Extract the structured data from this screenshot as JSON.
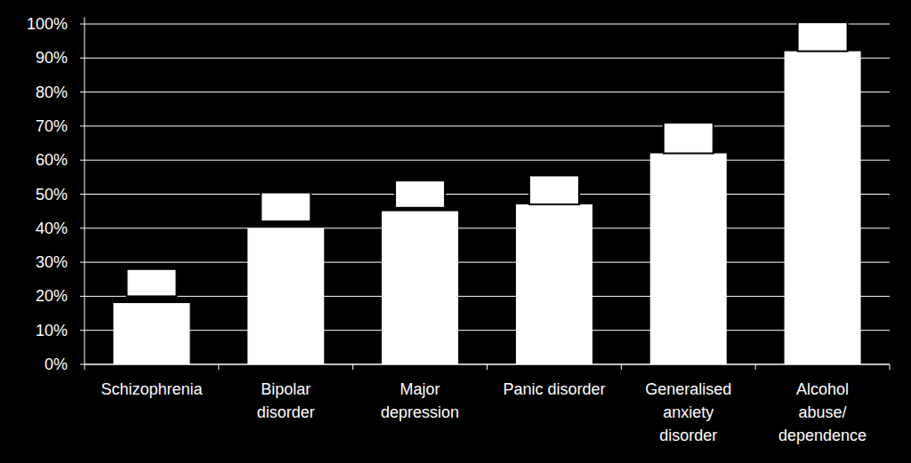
{
  "chart_data": {
    "type": "bar",
    "categories": [
      "Schizophrenia",
      "Bipolar\ndisorder",
      "Major\ndepression",
      "Panic disorder",
      "Generalised\nanxiety\ndisorder",
      "Alcohol\nabuse/\ndependence"
    ],
    "values": [
      18,
      40,
      45,
      47,
      62,
      92
    ],
    "ranges": [
      [
        20,
        28
      ],
      [
        42,
        50.5
      ],
      [
        46,
        54
      ],
      [
        47,
        55.5
      ],
      [
        62,
        71
      ],
      [
        92,
        100.5
      ]
    ],
    "color": "#ffffff",
    "ylim": [
      0,
      102
    ],
    "yticks": [
      {
        "value": 0,
        "label": "0%"
      },
      {
        "value": 10,
        "label": "10%"
      },
      {
        "value": 20,
        "label": "20%"
      },
      {
        "value": 30,
        "label": "30%"
      },
      {
        "value": 40,
        "label": "40%"
      },
      {
        "value": 50,
        "label": "50%"
      },
      {
        "value": 60,
        "label": "60%"
      },
      {
        "value": 70,
        "label": "70%"
      },
      {
        "value": 80,
        "label": "80%"
      },
      {
        "value": 90,
        "label": "90%"
      },
      {
        "value": 100,
        "label": "100%"
      }
    ],
    "grid": true
  }
}
